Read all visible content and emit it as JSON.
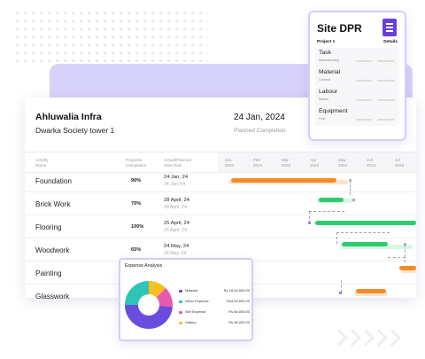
{
  "header": {
    "company": "Ahluwalia Infra",
    "project": "Dwarka Society tower 1",
    "date": "24 Jan, 2024",
    "date_sub": "Planned Completion"
  },
  "table": {
    "columns": {
      "activity_1": "Activity",
      "activity_2": "Name",
      "progress_1": "Progress",
      "progress_2": "Completion",
      "dates_1": "Actual/Planned",
      "dates_2": "Start Date"
    },
    "months": [
      [
        "Jan",
        "2024"
      ],
      [
        "Feb",
        "2024"
      ],
      [
        "Mar",
        "2024"
      ],
      [
        "Apr",
        "2024"
      ],
      [
        "May",
        "2024"
      ],
      [
        "Jun",
        "2024"
      ],
      [
        "Jul",
        "2024"
      ]
    ],
    "rows": [
      {
        "name": "Foundation",
        "progress": "90%",
        "actual": "24 Jan, 24",
        "planned": "24 Jan, 24"
      },
      {
        "name": "Brick Work",
        "progress": "70%",
        "actual": "28 April, 24",
        "planned": "28 April, 24"
      },
      {
        "name": "Flooring",
        "progress": "100%",
        "actual": "25 April, 24",
        "planned": "25 April, 24"
      },
      {
        "name": "Woodwork",
        "progress": "65%",
        "actual": "24 May, 24",
        "planned": "24 May, 24"
      },
      {
        "name": "Painting",
        "progress": "",
        "actual": "",
        "planned": ""
      },
      {
        "name": "Glasswork",
        "progress": "",
        "actual": "",
        "planned": ""
      }
    ]
  },
  "site_dpr": {
    "title": "Site DPR",
    "project_label": "Project 1",
    "details_label": "Details",
    "sections": [
      {
        "title": "Task",
        "sub": "Waterfronting"
      },
      {
        "title": "Material",
        "sub": "Cement"
      },
      {
        "title": "Labour",
        "sub": "Mason"
      },
      {
        "title": "Equipment",
        "sub": "Fuel"
      }
    ]
  },
  "expense": {
    "title": "Expense Analysis",
    "items": [
      {
        "name": "Material",
        "value": "Rs 18,00,000.00",
        "color": "#6a4cdf"
      },
      {
        "name": "Other Expense",
        "value": "Rs3,00,000.00",
        "color": "#2ec4b6"
      },
      {
        "name": "Site Expense",
        "value": "Rs 68,000.00",
        "color": "#e85aad"
      },
      {
        "name": "Gallery",
        "value": "Rs 48,000.00",
        "color": "#f5c022"
      }
    ]
  },
  "colors": {
    "accent": "#6a3fe0",
    "orange": "#f28c28",
    "green": "#2ecc71",
    "lavender": "#d7d2fa"
  }
}
